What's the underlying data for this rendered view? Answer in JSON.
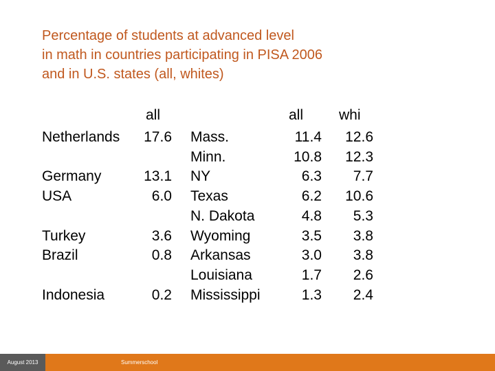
{
  "title": {
    "line1": "Percentage of students at advanced level",
    "line2": "in math in countries participating in PISA 2006",
    "line3": "and in U.S. states (all, whites)"
  },
  "countries": {
    "header": "all",
    "rows": [
      {
        "name": "Netherlands",
        "value": "17.6"
      },
      {
        "name": "Germany",
        "value": "13.1"
      },
      {
        "name": "USA",
        "value": "6.0"
      },
      {
        "name": "Turkey",
        "value": "3.6"
      },
      {
        "name": "Brazil",
        "value": "0.8"
      },
      {
        "name": "Indonesia",
        "value": "0.2"
      }
    ]
  },
  "states": {
    "header_all": "all",
    "header_whites": "whi",
    "rows": [
      {
        "name": "Mass.",
        "all": "11.4",
        "whites": "12.6"
      },
      {
        "name": "Minn.",
        "all": "10.8",
        "whites": "12.3"
      },
      {
        "name": "NY",
        "all": "6.3",
        "whites": "7.7"
      },
      {
        "name": "Texas",
        "all": "6.2",
        "whites": "10.6"
      },
      {
        "name": "N. Dakota",
        "all": "4.8",
        "whites": "5.3"
      },
      {
        "name": "Wyoming",
        "all": "3.5",
        "whites": "3.8"
      },
      {
        "name": "Arkansas",
        "all": "3.0",
        "whites": "3.8"
      },
      {
        "name": "Louisiana",
        "all": "1.7",
        "whites": "2.6"
      },
      {
        "name": "Mississippi",
        "all": "1.3",
        "whites": "2.4"
      }
    ]
  },
  "footer": {
    "date": "August 2013",
    "label": "Summerschool"
  },
  "colors": {
    "title": "#c0581e",
    "footer_bar": "#e0781a",
    "footer_date_box": "#5a5a5a"
  }
}
